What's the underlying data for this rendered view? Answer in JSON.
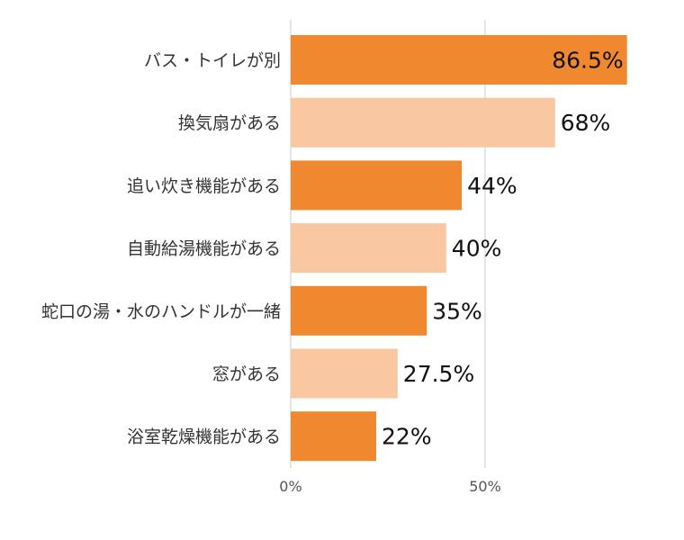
{
  "chart_data": {
    "type": "bar",
    "orientation": "horizontal",
    "categories": [
      "バス・トイレが別",
      "換気扇がある",
      "追い炊き機能がある",
      "自動給湯機能がある",
      "蛇口の湯・水のハンドルが一緒",
      "窓がある",
      "浴室乾燥機能がある"
    ],
    "values": [
      86.5,
      68,
      44,
      40,
      35,
      27.5,
      22
    ],
    "value_labels": [
      "86.5%",
      "68%",
      "44%",
      "40%",
      "35%",
      "27.5%",
      "22%"
    ],
    "xlim": [
      0,
      100
    ],
    "x_ticks": [
      {
        "value": 0,
        "label": "0%"
      },
      {
        "value": 50,
        "label": "50%"
      }
    ],
    "grid": true,
    "colors": {
      "dark": "#f0882f",
      "light": "#f9c7a0",
      "grid": "#dddddd",
      "text": "#333333"
    },
    "bar_shades": [
      "dark",
      "light",
      "dark",
      "light",
      "dark",
      "light",
      "dark"
    ]
  }
}
